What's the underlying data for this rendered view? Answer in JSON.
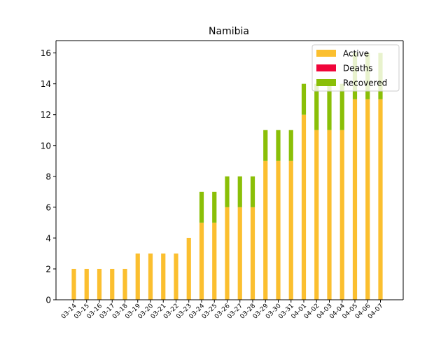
{
  "chart_data": {
    "type": "bar",
    "title": "Namibia",
    "xlabel": "",
    "ylabel": "",
    "ylim": [
      0,
      16.8
    ],
    "yticks": [
      0,
      2,
      4,
      6,
      8,
      10,
      12,
      14,
      16
    ],
    "stacked": true,
    "legend_position": "top-right",
    "grid": false,
    "categories": [
      "03-14",
      "03-15",
      "03-16",
      "03-17",
      "03-18",
      "03-19",
      "03-20",
      "03-21",
      "03-22",
      "03-23",
      "03-24",
      "03-25",
      "03-26",
      "03-27",
      "03-28",
      "03-29",
      "03-30",
      "03-31",
      "04-01",
      "04-02",
      "04-03",
      "04-04",
      "04-05",
      "04-06",
      "04-07"
    ],
    "series": [
      {
        "name": "Active",
        "color": "#fbbf2f",
        "values": [
          2,
          2,
          2,
          2,
          2,
          3,
          3,
          3,
          3,
          4,
          5,
          5,
          6,
          6,
          6,
          9,
          9,
          9,
          12,
          11,
          11,
          11,
          13,
          13,
          13
        ]
      },
      {
        "name": "Deaths",
        "color": "#f0053a",
        "values": [
          0,
          0,
          0,
          0,
          0,
          0,
          0,
          0,
          0,
          0,
          0,
          0,
          0,
          0,
          0,
          0,
          0,
          0,
          0,
          0,
          0,
          0,
          0,
          0,
          0
        ]
      },
      {
        "name": "Recovered",
        "color": "#8abf07",
        "values": [
          0,
          0,
          0,
          0,
          0,
          0,
          0,
          0,
          0,
          0,
          2,
          2,
          2,
          2,
          2,
          2,
          2,
          2,
          2,
          3,
          3,
          3,
          3,
          3,
          3
        ]
      }
    ]
  }
}
